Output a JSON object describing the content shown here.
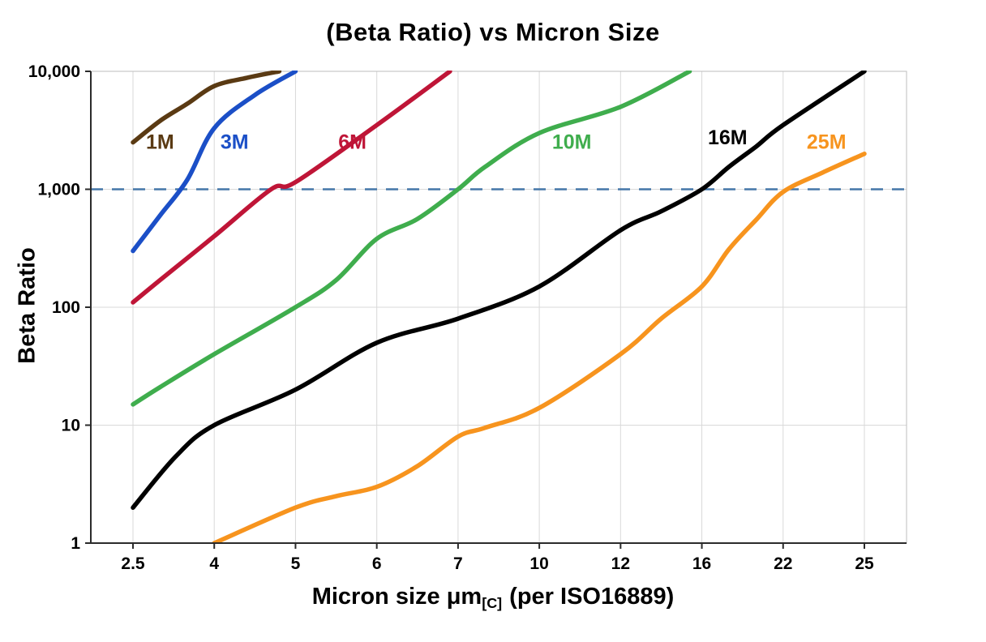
{
  "chart_data": {
    "type": "line",
    "title": "(Beta Ratio) vs Micron Size",
    "ylabel": "Beta Ratio",
    "xlabel": {
      "pre": "Micron size μm",
      "sub": "[C]",
      "post": "(per ISO16889)"
    },
    "x_categories": [
      2.5,
      4,
      5,
      6,
      7,
      10,
      12,
      16,
      22,
      25
    ],
    "x_tick_labels": [
      "2.5",
      "4",
      "5",
      "6",
      "7",
      "10",
      "12",
      "16",
      "22",
      "25"
    ],
    "x_axis_spacing": "equal-categories",
    "y_scale": "log",
    "ylim": [
      1,
      10000
    ],
    "y_ticks": [
      {
        "value": 1,
        "label": "1"
      },
      {
        "value": 10,
        "label": "10"
      },
      {
        "value": 100,
        "label": "100"
      },
      {
        "value": 1000,
        "label": "1,000"
      },
      {
        "value": 10000,
        "label": "10,000"
      }
    ],
    "grid": true,
    "legend_position": "inline-labels",
    "grid_color": "#d9d9d9",
    "reference_line": {
      "value": 1000,
      "style": "dashed",
      "color": "#4577a8"
    },
    "series": [
      {
        "name": "1M",
        "color": "#5a3a13",
        "label_at": [
          3.0,
          2200
        ],
        "points": [
          [
            2.5,
            2500
          ],
          [
            3,
            3800
          ],
          [
            3.5,
            5300
          ],
          [
            4,
            7500
          ],
          [
            4.4,
            8800
          ],
          [
            4.8,
            10000
          ]
        ]
      },
      {
        "name": "3M",
        "color": "#1b4fc7",
        "label_at": [
          4.25,
          2200
        ],
        "points": [
          [
            2.5,
            300
          ],
          [
            3,
            600
          ],
          [
            3.5,
            1200
          ],
          [
            4,
            3300
          ],
          [
            4.5,
            6300
          ],
          [
            5,
            10000
          ]
        ]
      },
      {
        "name": "6M",
        "color": "#bf1537",
        "label_at": [
          5.7,
          2200
        ],
        "points": [
          [
            2.5,
            110
          ],
          [
            3,
            170
          ],
          [
            4,
            400
          ],
          [
            4.7,
            1000
          ],
          [
            5,
            1150
          ],
          [
            6,
            3500
          ],
          [
            6.9,
            10000
          ]
        ]
      },
      {
        "name": "10M",
        "color": "#3fad4d",
        "label_at": [
          10.8,
          2200
        ],
        "points": [
          [
            2.5,
            15
          ],
          [
            3,
            21
          ],
          [
            4,
            40
          ],
          [
            5,
            100
          ],
          [
            5.5,
            170
          ],
          [
            6,
            380
          ],
          [
            6.5,
            560
          ],
          [
            7,
            1000
          ],
          [
            8,
            1550
          ],
          [
            10,
            3000
          ],
          [
            12,
            5000
          ],
          [
            15.4,
            10000
          ]
        ]
      },
      {
        "name": "16M",
        "color": "#000000",
        "label_at": [
          17.9,
          2400
        ],
        "points": [
          [
            2.5,
            2
          ],
          [
            3.3,
            5.5
          ],
          [
            4,
            10
          ],
          [
            5,
            20
          ],
          [
            6,
            50
          ],
          [
            7,
            80
          ],
          [
            10,
            150
          ],
          [
            12,
            450
          ],
          [
            14,
            650
          ],
          [
            16,
            1000
          ],
          [
            18,
            1550
          ],
          [
            20,
            2300
          ],
          [
            22,
            3500
          ],
          [
            25,
            10000
          ]
        ]
      },
      {
        "name": "25M",
        "color": "#f7941e",
        "label_at": [
          23.6,
          2200
        ],
        "points": [
          [
            4,
            1
          ],
          [
            5,
            2
          ],
          [
            5.5,
            2.5
          ],
          [
            6,
            3
          ],
          [
            6.5,
            4.5
          ],
          [
            7,
            8
          ],
          [
            8,
            9.5
          ],
          [
            10,
            14
          ],
          [
            12,
            40
          ],
          [
            14,
            80
          ],
          [
            16,
            150
          ],
          [
            18,
            310
          ],
          [
            20,
            550
          ],
          [
            22,
            950
          ],
          [
            23.5,
            1400
          ],
          [
            25,
            2000
          ]
        ]
      }
    ]
  }
}
